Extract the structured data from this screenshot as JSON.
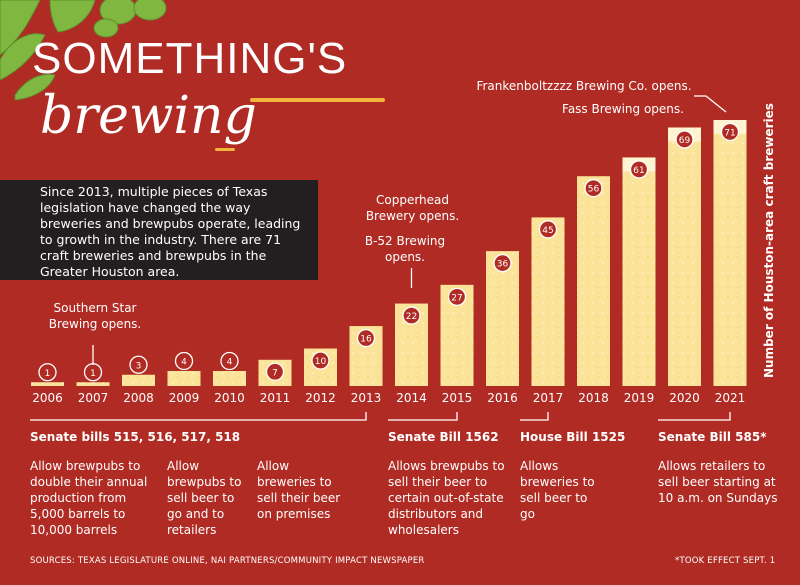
{
  "title": {
    "main": "SOMETHING'S",
    "script": "brewing"
  },
  "intro_text": "Since 2013, multiple pieces of Texas legislation have changed the way breweries and brewpubs operate, leading to growth in the industry. There are 71 craft breweries and brewpubs in the Greater Houston area.",
  "chart_data": {
    "type": "bar",
    "categories": [
      "2006",
      "2007",
      "2008",
      "2009",
      "2010",
      "2011",
      "2012",
      "2013",
      "2014",
      "2015",
      "2016",
      "2017",
      "2018",
      "2019",
      "2020",
      "2021"
    ],
    "values": [
      1,
      1,
      3,
      4,
      4,
      7,
      10,
      16,
      22,
      27,
      36,
      45,
      56,
      61,
      69,
      71
    ],
    "ylabel": "Number of Houston-area craft breweries",
    "annotations": [
      {
        "year": "2007",
        "text": "Southern Star Brewing opens."
      },
      {
        "year": "2014",
        "text": "Copperhead Brewery opens."
      },
      {
        "year": "2014",
        "text": "B-52 Brewing opens."
      },
      {
        "year": "2021",
        "text": "Frankenboltzzzz Brewing Co. opens."
      },
      {
        "year": "2021",
        "text": "Fass Brewing opens."
      }
    ],
    "colors": {
      "bar": "#fbe49a",
      "background": "#b02b24",
      "accent": "#f3b43a"
    }
  },
  "legislation": [
    {
      "title": "Senate bills 515, 516, 517, 518",
      "descriptions": [
        "Allow brewpubs to double their annual production from 5,000 barrels to 10,000 barrels",
        "Allow brewpubs to sell beer to go and to retailers",
        "Allow breweries to sell their beer on premises"
      ]
    },
    {
      "title": "Senate Bill 1562",
      "descriptions": [
        "Allows brewpubs to sell their beer to certain out-of-state distributors and wholesalers"
      ]
    },
    {
      "title": "House Bill 1525",
      "descriptions": [
        "Allows breweries to sell beer to go"
      ]
    },
    {
      "title": "Senate Bill 585*",
      "descriptions": [
        "Allows retailers to sell beer starting at 10 a.m. on Sundays"
      ]
    }
  ],
  "footer": {
    "sources": "SOURCES: TEXAS LEGISLATURE ONLINE, NAI PARTNERS/COMMUNITY IMPACT NEWSPAPER",
    "note": "*TOOK EFFECT SEPT. 1"
  }
}
